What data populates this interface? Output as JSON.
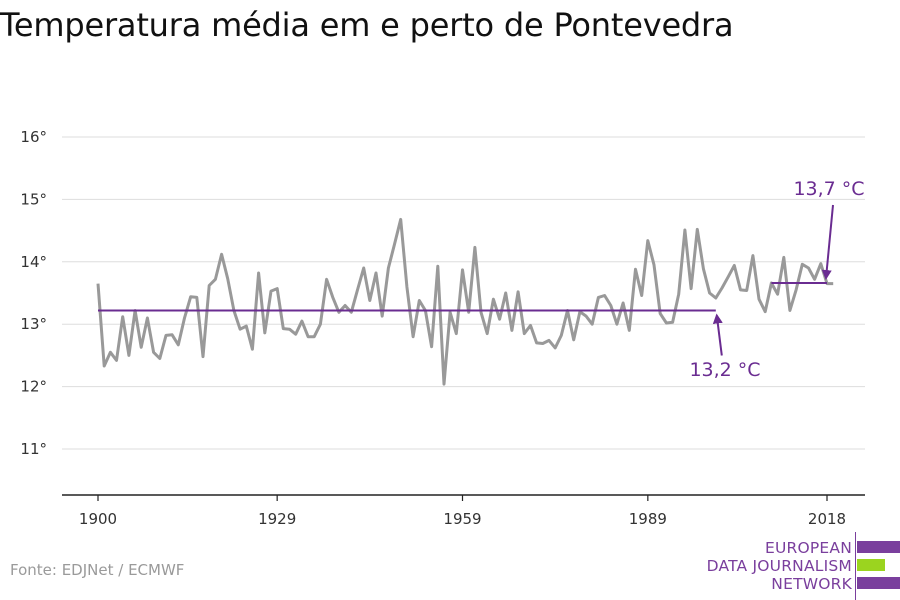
{
  "source": "Fonte: EDJNet / ECMWF",
  "logo": {
    "lines": [
      "EUROPEAN",
      "DATA JOURNALISM",
      "NETWORK"
    ],
    "colors": [
      "#7a3f9d",
      "#9bd41f",
      "#7a3f9d"
    ]
  },
  "chart_data": {
    "type": "line",
    "title": "Temperatura média em e perto de Pontevedra",
    "xlabel": "",
    "ylabel": "",
    "xlim": [
      1900,
      2019
    ],
    "ylim": [
      10.2,
      16.4
    ],
    "x_ticks": [
      1900,
      1929,
      1959,
      1989,
      2018
    ],
    "x_tick_labels": [
      "1900",
      "1929",
      "1959",
      "1989",
      "2018"
    ],
    "y_ticks": [
      11,
      12,
      13,
      14,
      15,
      16
    ],
    "y_tick_labels": [
      "11°",
      "12°",
      "13°",
      "14°",
      "15°",
      "16°"
    ],
    "grid": "horizontal",
    "colors": {
      "series": "#999999",
      "average": "#6a2c91",
      "grid": "#dddddd",
      "axis": "#222222"
    },
    "series": [
      {
        "x": [
          1900,
          1901,
          1902,
          1903,
          1904,
          1905,
          1906,
          1907,
          1908,
          1909,
          1910,
          1911,
          1912,
          1913,
          1914,
          1915,
          1916,
          1917,
          1918,
          1919,
          1920,
          1921,
          1922,
          1923,
          1924,
          1925,
          1926,
          1927,
          1928,
          1929,
          1930,
          1931,
          1932,
          1933,
          1934,
          1935,
          1936,
          1937,
          1938,
          1939,
          1940,
          1941,
          1942,
          1943,
          1944,
          1945,
          1946,
          1947,
          1948,
          1949,
          1950,
          1951,
          1952,
          1953,
          1954,
          1955,
          1956,
          1957,
          1958,
          1959,
          1960,
          1961,
          1962,
          1963,
          1964,
          1965,
          1966,
          1967,
          1968,
          1969,
          1970,
          1971,
          1972,
          1973,
          1974,
          1975,
          1976,
          1977,
          1978,
          1979,
          1980,
          1981,
          1982,
          1983,
          1984,
          1985,
          1986,
          1987,
          1988,
          1989,
          1990,
          1991,
          1992,
          1993,
          1994,
          1995,
          1996,
          1997,
          1998,
          1999,
          2000,
          2001,
          2002,
          2003,
          2004,
          2005,
          2006,
          2007,
          2008,
          2009,
          2010,
          2011,
          2012,
          2013,
          2014,
          2015,
          2016,
          2017,
          2018,
          2019
        ],
        "values": [
          13.65,
          12.33,
          12.55,
          12.42,
          13.12,
          12.5,
          13.22,
          12.63,
          13.1,
          12.55,
          12.45,
          12.82,
          12.83,
          12.67,
          13.1,
          13.44,
          13.43,
          12.48,
          13.62,
          13.72,
          14.12,
          13.73,
          13.22,
          12.92,
          12.97,
          12.6,
          13.82,
          12.86,
          13.53,
          13.57,
          12.93,
          12.92,
          12.84,
          13.05,
          12.8,
          12.8,
          13.0,
          13.72,
          13.43,
          13.19,
          13.3,
          13.19,
          13.55,
          13.9,
          13.38,
          13.82,
          13.13,
          13.9,
          14.28,
          14.68,
          13.6,
          12.8,
          13.38,
          13.22,
          12.64,
          13.93,
          12.04,
          13.19,
          12.85,
          13.87,
          13.19,
          14.23,
          13.19,
          12.85,
          13.4,
          13.08,
          13.5,
          12.9,
          13.52,
          12.85,
          12.98,
          12.7,
          12.69,
          12.74,
          12.62,
          12.82,
          13.22,
          12.75,
          13.2,
          13.13,
          13.0,
          13.43,
          13.46,
          13.3,
          13.0,
          13.34,
          12.9,
          13.88,
          13.46,
          14.34,
          13.95,
          13.17,
          13.02,
          13.03,
          13.48,
          14.51,
          13.57,
          14.52,
          13.89,
          13.5,
          13.42,
          13.58,
          13.76,
          13.94,
          13.55,
          13.54,
          14.1,
          13.4,
          13.2,
          13.66,
          13.48,
          14.07,
          13.22,
          13.55,
          13.96,
          13.9,
          13.72,
          13.97,
          13.65,
          13.65
        ]
      }
    ],
    "reference_lines": [
      {
        "x_start": 1900,
        "x_end": 2000,
        "value": 13.22
      },
      {
        "x_start": 2009,
        "x_end": 2018,
        "value": 13.66
      }
    ],
    "annotations": [
      {
        "text": "13,2 °C"
      },
      {
        "text": "13,7 °C"
      }
    ]
  }
}
